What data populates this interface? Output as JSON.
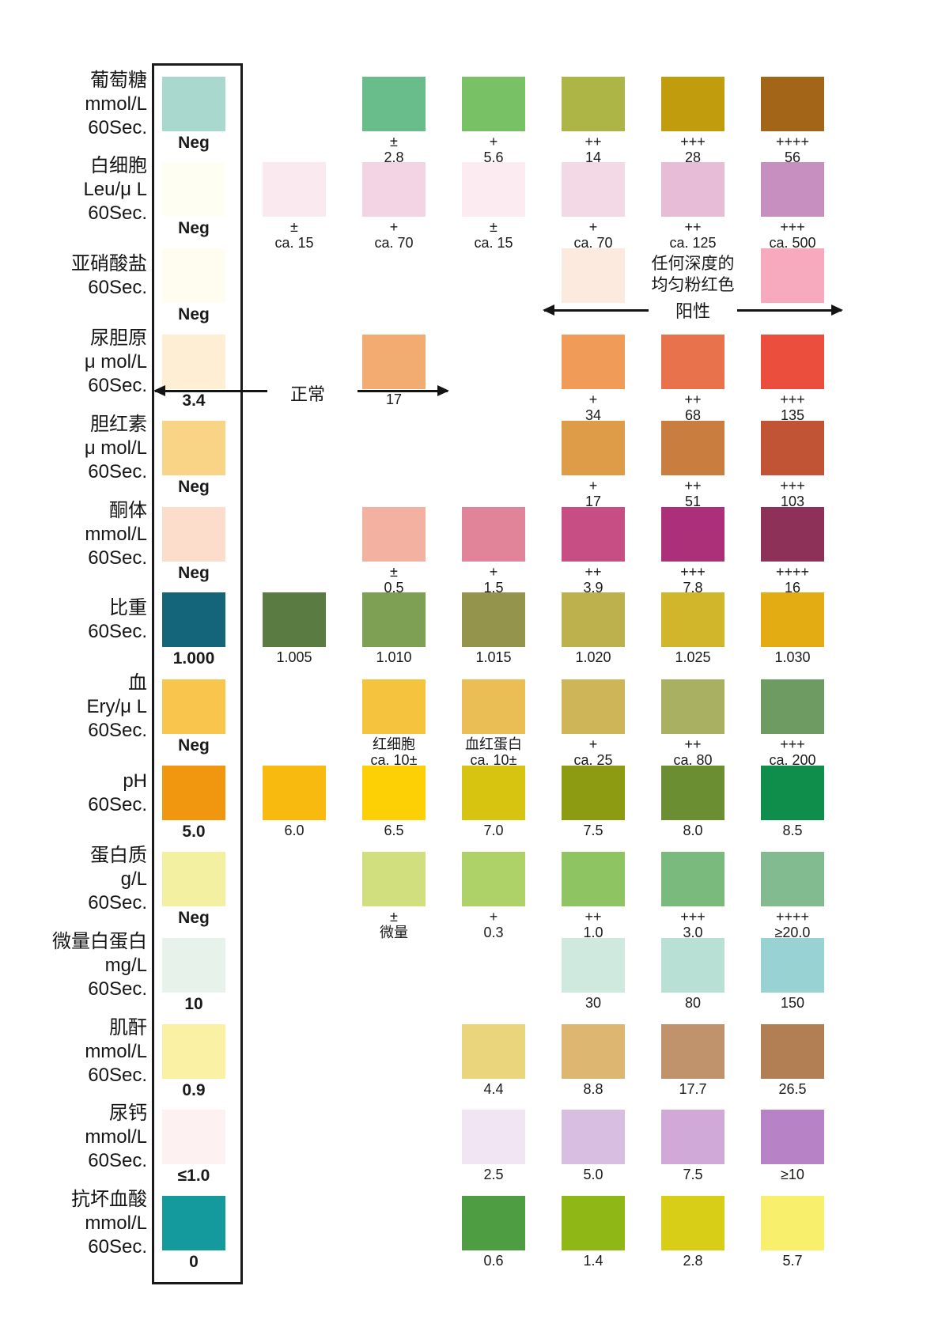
{
  "chart_data": {
    "type": "table",
    "description_semantics": "urine-test-strip color reference chart",
    "rows": [
      {
        "analyte": "glucose",
        "label_lines": [
          "葡萄糖",
          "mmol/L",
          "60Sec."
        ],
        "cells": [
          {
            "col": 1,
            "color": "#a8d8ce",
            "lines": [
              "Neg"
            ],
            "bold": true
          },
          {
            "col": 3,
            "color": "#68bd8a",
            "lines": [
              "±",
              "2.8"
            ]
          },
          {
            "col": 4,
            "color": "#78c165",
            "lines": [
              "+",
              "5.6"
            ]
          },
          {
            "col": 5,
            "color": "#adb547",
            "lines": [
              "++",
              "14"
            ]
          },
          {
            "col": 6,
            "color": "#c19c0c",
            "lines": [
              "+++",
              "28"
            ]
          },
          {
            "col": 7,
            "color": "#a36518",
            "lines": [
              "++++",
              "56"
            ]
          }
        ]
      },
      {
        "analyte": "leukocytes",
        "label_lines": [
          "白细胞",
          "Leu/μ L",
          "60Sec."
        ],
        "cells": [
          {
            "col": 1,
            "color": "#fffef2",
            "lines": [
              "Neg"
            ],
            "bold": true
          },
          {
            "col": 2,
            "color": "#fbe9f0",
            "speckle": "#e2abc8",
            "lines": [
              "±",
              "ca. 15"
            ]
          },
          {
            "col": 3,
            "color": "#f2d4e4",
            "speckle": "#cb97bf",
            "lines": [
              "+",
              "ca. 70"
            ]
          },
          {
            "col": 4,
            "color": "#fcebf1",
            "lines": [
              "±",
              "ca. 15"
            ]
          },
          {
            "col": 5,
            "color": "#f3d8e6",
            "lines": [
              "+",
              "ca. 70"
            ]
          },
          {
            "col": 6,
            "color": "#e6bcd7",
            "lines": [
              "++",
              "ca. 125"
            ]
          },
          {
            "col": 7,
            "color": "#c78fc0",
            "lines": [
              "+++",
              "ca. 500"
            ]
          }
        ]
      },
      {
        "analyte": "nitrite",
        "label_lines": [
          "亚硝酸盐",
          "60Sec."
        ],
        "note_lines": [
          "任何深度的",
          "均匀粉红色"
        ],
        "positive_label": "阳性",
        "cells": [
          {
            "col": 1,
            "color": "#fffdf0",
            "lines": [
              "Neg"
            ],
            "bold": true
          },
          {
            "col": 5,
            "color": "#fceade"
          },
          {
            "col": 7,
            "color": "#f7aabd"
          }
        ]
      },
      {
        "analyte": "urobilinogen",
        "label_lines": [
          "尿胆原",
          "μ mol/L",
          "60Sec."
        ],
        "normal_label": "正常",
        "cells": [
          {
            "col": 1,
            "color": "#fdeed4",
            "lines": [
              "3.4"
            ],
            "bold": true
          },
          {
            "col": 3,
            "color": "#f2ac71",
            "lines": [
              "17"
            ]
          },
          {
            "col": 5,
            "color": "#f09b58",
            "lines": [
              "+",
              "34"
            ]
          },
          {
            "col": 6,
            "color": "#e8724b",
            "lines": [
              "++",
              "68"
            ]
          },
          {
            "col": 7,
            "color": "#eb4e3d",
            "lines": [
              "+++",
              "135"
            ]
          }
        ]
      },
      {
        "analyte": "bilirubin",
        "label_lines": [
          "胆红素",
          "μ mol/L",
          "60Sec."
        ],
        "cells": [
          {
            "col": 1,
            "color": "#f9d487",
            "lines": [
              "Neg"
            ],
            "bold": true
          },
          {
            "col": 5,
            "color": "#de9c49",
            "lines": [
              "+",
              "17"
            ]
          },
          {
            "col": 6,
            "color": "#c97e40",
            "lines": [
              "++",
              "51"
            ]
          },
          {
            "col": 7,
            "color": "#c05434",
            "lines": [
              "+++",
              "103"
            ]
          }
        ]
      },
      {
        "analyte": "ketone",
        "label_lines": [
          "酮体",
          "mmol/L",
          "60Sec."
        ],
        "cells": [
          {
            "col": 1,
            "color": "#fcdccb",
            "lines": [
              "Neg"
            ],
            "bold": true
          },
          {
            "col": 3,
            "color": "#f3b2a1",
            "lines": [
              "±",
              "0.5"
            ]
          },
          {
            "col": 4,
            "color": "#e18399",
            "lines": [
              "+",
              "1.5"
            ]
          },
          {
            "col": 5,
            "color": "#c74d85",
            "lines": [
              "++",
              "3.9"
            ]
          },
          {
            "col": 6,
            "color": "#ab3079",
            "lines": [
              "+++",
              "7.8"
            ]
          },
          {
            "col": 7,
            "color": "#8e3159",
            "lines": [
              "++++",
              "16"
            ]
          }
        ]
      },
      {
        "analyte": "specific-gravity",
        "label_lines": [
          "比重",
          "60Sec."
        ],
        "cells": [
          {
            "col": 1,
            "color": "#15657a",
            "lines": [
              "1.000"
            ],
            "bold": true
          },
          {
            "col": 2,
            "color": "#5a7b41",
            "lines": [
              "1.005"
            ]
          },
          {
            "col": 3,
            "color": "#7da055",
            "lines": [
              "1.010"
            ]
          },
          {
            "col": 4,
            "color": "#94944c",
            "lines": [
              "1.015"
            ]
          },
          {
            "col": 5,
            "color": "#bdb14e",
            "lines": [
              "1.020"
            ]
          },
          {
            "col": 6,
            "color": "#d1b62c",
            "lines": [
              "1.025"
            ]
          },
          {
            "col": 7,
            "color": "#e3ac12",
            "lines": [
              "1.030"
            ]
          }
        ]
      },
      {
        "analyte": "blood",
        "label_lines": [
          "血",
          "Ery/μ L",
          "60Sec."
        ],
        "cells": [
          {
            "col": 1,
            "color": "#f9c54c",
            "lines": [
              "Neg"
            ],
            "bold": true
          },
          {
            "col": 3,
            "color": "#f6c33f",
            "speckle": "#2f8c4b",
            "lines": [
              "红细胞",
              "ca. 10±"
            ]
          },
          {
            "col": 4,
            "color": "#eabd55",
            "lines": [
              "血红蛋白",
              "ca. 10±"
            ]
          },
          {
            "col": 5,
            "color": "#cdb558",
            "lines": [
              "+",
              "ca. 25"
            ]
          },
          {
            "col": 6,
            "color": "#a9b062",
            "lines": [
              "++",
              "ca. 80"
            ]
          },
          {
            "col": 7,
            "color": "#6e9b62",
            "lines": [
              "+++",
              "ca. 200"
            ]
          }
        ]
      },
      {
        "analyte": "pH",
        "label_lines": [
          "pH",
          "60Sec."
        ],
        "cells": [
          {
            "col": 1,
            "color": "#f1970f",
            "lines": [
              "5.0"
            ],
            "bold": true
          },
          {
            "col": 2,
            "color": "#f8ba0e",
            "lines": [
              "6.0"
            ]
          },
          {
            "col": 3,
            "color": "#fdd006",
            "lines": [
              "6.5"
            ]
          },
          {
            "col": 4,
            "color": "#d6c411",
            "lines": [
              "7.0"
            ]
          },
          {
            "col": 5,
            "color": "#8d9b13",
            "lines": [
              "7.5"
            ]
          },
          {
            "col": 6,
            "color": "#6b8e33",
            "lines": [
              "8.0"
            ]
          },
          {
            "col": 7,
            "color": "#0e8d4b",
            "lines": [
              "8.5"
            ]
          }
        ]
      },
      {
        "analyte": "protein",
        "label_lines": [
          "蛋白质",
          "g/L",
          "60Sec."
        ],
        "cells": [
          {
            "col": 1,
            "color": "#f3f0a1",
            "lines": [
              "Neg"
            ],
            "bold": true
          },
          {
            "col": 3,
            "color": "#d1df7e",
            "lines": [
              "±",
              "微量"
            ]
          },
          {
            "col": 4,
            "color": "#aed268",
            "lines": [
              "+",
              "0.3"
            ]
          },
          {
            "col": 5,
            "color": "#8ec562",
            "lines": [
              "++",
              "1.0"
            ]
          },
          {
            "col": 6,
            "color": "#7abb7d",
            "lines": [
              "+++",
              "3.0"
            ]
          },
          {
            "col": 7,
            "color": "#81bb8f",
            "lines": [
              "++++",
              "≥20.0"
            ]
          }
        ]
      },
      {
        "analyte": "microalbumin",
        "label_lines": [
          "微量白蛋白",
          "mg/L",
          "60Sec."
        ],
        "cells": [
          {
            "col": 1,
            "color": "#e7f3ea",
            "lines": [
              "10"
            ],
            "bold": true
          },
          {
            "col": 5,
            "color": "#d0e9de",
            "lines": [
              "30"
            ]
          },
          {
            "col": 6,
            "color": "#b9e0d5",
            "lines": [
              "80"
            ]
          },
          {
            "col": 7,
            "color": "#98d2d2",
            "lines": [
              "150"
            ]
          }
        ]
      },
      {
        "analyte": "creatinine",
        "label_lines": [
          "肌酐",
          "mmol/L",
          "60Sec."
        ],
        "cells": [
          {
            "col": 1,
            "color": "#faf1a5",
            "lines": [
              "0.9"
            ],
            "bold": true
          },
          {
            "col": 4,
            "color": "#ead57c",
            "lines": [
              "4.4"
            ]
          },
          {
            "col": 5,
            "color": "#ddb771",
            "lines": [
              "8.8"
            ]
          },
          {
            "col": 6,
            "color": "#c0936c",
            "lines": [
              "17.7"
            ]
          },
          {
            "col": 7,
            "color": "#b27f55",
            "lines": [
              "26.5"
            ]
          }
        ]
      },
      {
        "analyte": "calcium",
        "label_lines": [
          "尿钙",
          "mmol/L",
          "60Sec."
        ],
        "cells": [
          {
            "col": 1,
            "color": "#fdf1f1",
            "lines": [
              "≤1.0"
            ],
            "bold": true
          },
          {
            "col": 4,
            "color": "#f2e5f3",
            "lines": [
              "2.5"
            ]
          },
          {
            "col": 5,
            "color": "#d8bee1",
            "lines": [
              "5.0"
            ]
          },
          {
            "col": 6,
            "color": "#d0a9d9",
            "lines": [
              "7.5"
            ]
          },
          {
            "col": 7,
            "color": "#b782c6",
            "lines": [
              "≥10"
            ]
          }
        ]
      },
      {
        "analyte": "ascorbic-acid",
        "label_lines": [
          "抗坏血酸",
          "mmol/L",
          "60Sec."
        ],
        "cells": [
          {
            "col": 1,
            "color": "#149a9c",
            "lines": [
              "0"
            ],
            "bold": true
          },
          {
            "col": 4,
            "color": "#4f9d43",
            "lines": [
              "0.6"
            ]
          },
          {
            "col": 5,
            "color": "#8fb817",
            "lines": [
              "1.4"
            ]
          },
          {
            "col": 6,
            "color": "#d8ce18",
            "lines": [
              "2.8"
            ]
          },
          {
            "col": 7,
            "color": "#f8f06d",
            "lines": [
              "5.7"
            ]
          }
        ]
      }
    ]
  }
}
